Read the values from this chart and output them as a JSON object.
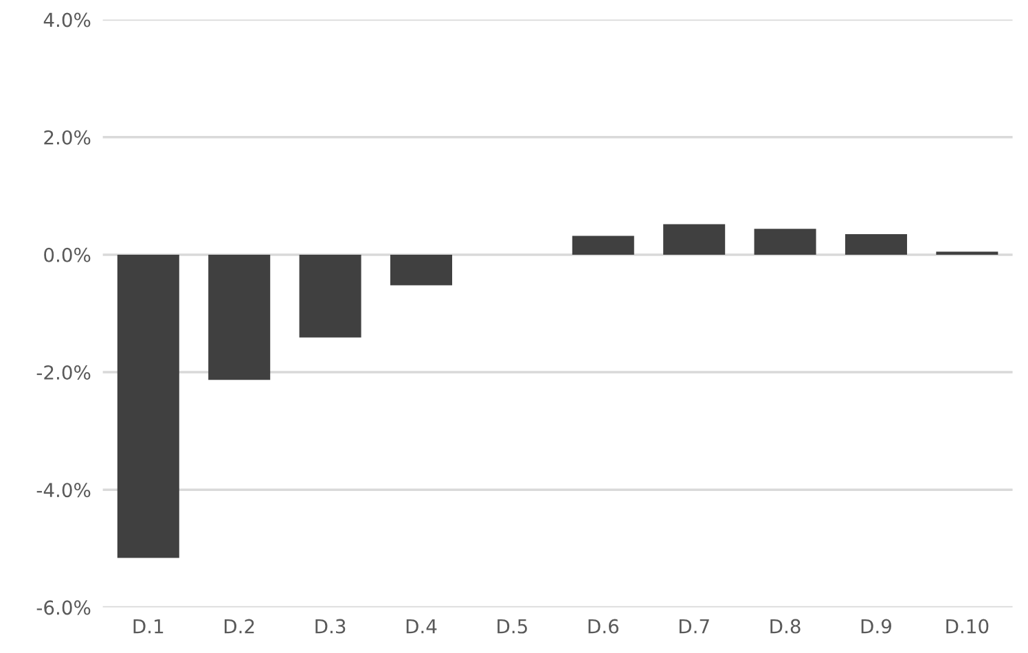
{
  "chart_data": {
    "type": "bar",
    "categories": [
      "D.1",
      "D.2",
      "D.3",
      "D.4",
      "D.5",
      "D.6",
      "D.7",
      "D.8",
      "D.9",
      "D.10"
    ],
    "values": [
      -5.16,
      -2.13,
      -1.41,
      -0.52,
      0,
      0.32,
      0.52,
      0.44,
      0.35,
      0.05
    ],
    "color": "#404040",
    "ylim": [
      -6,
      4
    ],
    "yticks": [
      {
        "value": -6,
        "label": "-6.0%"
      },
      {
        "value": -4,
        "label": "-4.0%"
      },
      {
        "value": -2,
        "label": "-2.0%"
      },
      {
        "value": 0,
        "label": "0.0%"
      },
      {
        "value": 2,
        "label": "2.0%"
      },
      {
        "value": 4,
        "label": "4.0%"
      }
    ],
    "grid": "y",
    "legend": false
  }
}
